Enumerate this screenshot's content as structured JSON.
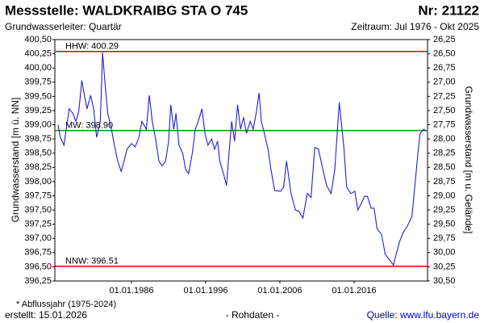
{
  "chart_data": {
    "type": "line",
    "title": "Messstelle: WALDKRAIBG STA O 745",
    "number": "Nr: 21122",
    "subtitle": "Grundwasserleiter: Quartär",
    "period": "Zeitraum: Jul 1976 - Okt 2025",
    "ylabel": "Grundwasserstand [m ü. NN]",
    "y2label": "Grundwasserstand [m u. Gelände]",
    "footnote": "* Abflussjahr (1975-2024)",
    "created": "erstellt:  15.01.2026",
    "data_note": "- Rohdaten -",
    "source": "Quelle: www.lfu.bayern.de",
    "grid": false,
    "xlim": [
      1975.67,
      2025.9
    ],
    "xticks": [
      {
        "value": 1986,
        "label": "01.01.1986"
      },
      {
        "value": 1996,
        "label": "01.01.1996"
      },
      {
        "value": 2006,
        "label": "01.01.2006"
      },
      {
        "value": 2016,
        "label": "01.01.2016"
      }
    ],
    "ylim": [
      396.25,
      400.5
    ],
    "yticks": [
      {
        "value": 400.5,
        "label": "400,50"
      },
      {
        "value": 400.25,
        "label": "400,25"
      },
      {
        "value": 400,
        "label": "400,00"
      },
      {
        "value": 399.75,
        "label": "399,75"
      },
      {
        "value": 399.5,
        "label": "399,50"
      },
      {
        "value": 399.25,
        "label": "399,25"
      },
      {
        "value": 399,
        "label": "399,00"
      },
      {
        "value": 398.75,
        "label": "398,75"
      },
      {
        "value": 398.5,
        "label": "398,50"
      },
      {
        "value": 398.25,
        "label": "398,25"
      },
      {
        "value": 398,
        "label": "398,00"
      },
      {
        "value": 397.75,
        "label": "397,75"
      },
      {
        "value": 397.5,
        "label": "397,50"
      },
      {
        "value": 397.25,
        "label": "397,25"
      },
      {
        "value": 397,
        "label": "397,00"
      },
      {
        "value": 396.75,
        "label": "396,75"
      },
      {
        "value": 396.5,
        "label": "396,50"
      },
      {
        "value": 396.25,
        "label": "396,25"
      }
    ],
    "y2lim": [
      30.5,
      26.25
    ],
    "y2ticks": [
      {
        "value": 26.25,
        "label": "26,25"
      },
      {
        "value": 26.5,
        "label": "26,50"
      },
      {
        "value": 26.75,
        "label": "26,75"
      },
      {
        "value": 27,
        "label": "27,00"
      },
      {
        "value": 27.25,
        "label": "27,25"
      },
      {
        "value": 27.5,
        "label": "27,50"
      },
      {
        "value": 27.75,
        "label": "27,75"
      },
      {
        "value": 28,
        "label": "28,00"
      },
      {
        "value": 28.25,
        "label": "28,25"
      },
      {
        "value": 28.5,
        "label": "28,50"
      },
      {
        "value": 28.75,
        "label": "28,75"
      },
      {
        "value": 29,
        "label": "29,00"
      },
      {
        "value": 29.25,
        "label": "29,25"
      },
      {
        "value": 29.5,
        "label": "29,50"
      },
      {
        "value": 29.75,
        "label": "29,75"
      },
      {
        "value": 30,
        "label": "30,00"
      },
      {
        "value": 30.25,
        "label": "30,25"
      },
      {
        "value": 30.5,
        "label": "30,50"
      }
    ],
    "reference_lines": [
      {
        "label": "HHW: 400.29",
        "value": 400.29,
        "color": "#e00000"
      },
      {
        "label": "MW: 398.90",
        "value": 398.9,
        "color": "#009900"
      },
      {
        "label": "NNW: 396.51",
        "value": 396.51,
        "color": "#e00000"
      }
    ],
    "series": [
      {
        "color": "#1f1fd6",
        "x": [
          1976.1,
          1976.4,
          1976.9,
          1977.2,
          1977.6,
          1978.1,
          1978.5,
          1978.9,
          1979.3,
          1979.6,
          1980.0,
          1980.5,
          1980.9,
          1981.3,
          1981.8,
          1982.1,
          1982.4,
          1982.8,
          1983.3,
          1983.7,
          1984.1,
          1984.6,
          1985.0,
          1985.4,
          1986.0,
          1986.5,
          1987.0,
          1987.4,
          1988.0,
          1988.4,
          1988.8,
          1989.3,
          1989.7,
          1990.1,
          1990.6,
          1991.0,
          1991.3,
          1991.7,
          1992.0,
          1992.4,
          1992.9,
          1993.3,
          1993.7,
          1994.2,
          1994.6,
          1995.0,
          1995.5,
          1995.9,
          1996.3,
          1996.8,
          1997.2,
          1997.6,
          1997.9,
          1998.4,
          1998.8,
          1999.1,
          1999.5,
          1999.9,
          2000.3,
          2000.7,
          2001.1,
          2001.5,
          2002.0,
          2002.4,
          2002.8,
          2003.2,
          2003.5,
          2003.9,
          2004.4,
          2004.8,
          2005.3,
          2006.1,
          2006.5,
          2006.9,
          2007.5,
          2008.1,
          2008.6,
          2009.1,
          2009.7,
          2010.2,
          2010.7,
          2011.2,
          2011.8,
          2012.3,
          2012.9,
          2013.4,
          2014.0,
          2014.6,
          2015.0,
          2015.6,
          2016.1,
          2016.5,
          2017.0,
          2017.4,
          2017.8,
          2018.3,
          2018.7,
          2019.1,
          2019.7,
          2020.2,
          2020.8,
          2021.3,
          2021.6,
          2022.1,
          2022.6,
          2023.2,
          2023.8,
          2024.3,
          2024.6,
          2024.9,
          2025.4,
          2025.7
        ],
        "values": [
          399.0,
          398.78,
          398.64,
          398.92,
          399.28,
          399.2,
          399.06,
          399.24,
          399.78,
          399.56,
          399.28,
          399.52,
          399.28,
          398.78,
          399.06,
          400.27,
          399.78,
          399.2,
          398.92,
          398.64,
          398.38,
          398.18,
          398.36,
          398.57,
          398.67,
          398.61,
          398.78,
          399.06,
          398.92,
          399.52,
          399.06,
          398.71,
          398.36,
          398.28,
          398.36,
          398.71,
          399.35,
          398.92,
          399.2,
          398.64,
          398.5,
          398.21,
          398.14,
          398.5,
          398.92,
          399.06,
          399.28,
          398.85,
          398.64,
          398.75,
          398.57,
          398.71,
          398.36,
          398.14,
          397.93,
          398.43,
          399.06,
          398.71,
          399.35,
          398.92,
          399.13,
          398.85,
          399.06,
          398.92,
          399.2,
          399.56,
          399.06,
          398.85,
          398.57,
          398.21,
          397.84,
          397.83,
          397.9,
          398.36,
          397.79,
          397.5,
          397.47,
          397.36,
          397.79,
          397.72,
          398.6,
          398.57,
          398.21,
          397.93,
          397.79,
          398.21,
          399.39,
          398.64,
          397.9,
          397.79,
          397.83,
          397.5,
          397.62,
          397.74,
          397.74,
          397.53,
          397.53,
          397.17,
          397.07,
          396.72,
          396.62,
          396.53,
          396.68,
          396.93,
          397.1,
          397.22,
          397.39,
          398.07,
          398.5,
          398.85,
          398.92,
          398.89
        ]
      }
    ]
  }
}
